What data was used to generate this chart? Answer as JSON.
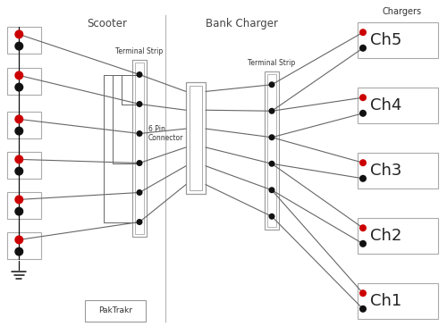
{
  "bg_color": "#ffffff",
  "scooter_label": "Scooter",
  "bank_charger_label": "Bank Charger",
  "chargers_label": "Chargers",
  "terminal_strip_left_label": "Terminal Strip",
  "connector_label": "6 Pin\nConnector",
  "terminal_strip_right_label": "Terminal Strip",
  "paktrakr_label": "PakTrakr",
  "channel_labels": [
    "Ch5",
    "Ch4",
    "Ch3",
    "Ch2",
    "Ch1"
  ],
  "battery_red_color": "#cc0000",
  "battery_black_color": "#111111",
  "wire_color": "#666666",
  "box_edge_color": "#999999"
}
